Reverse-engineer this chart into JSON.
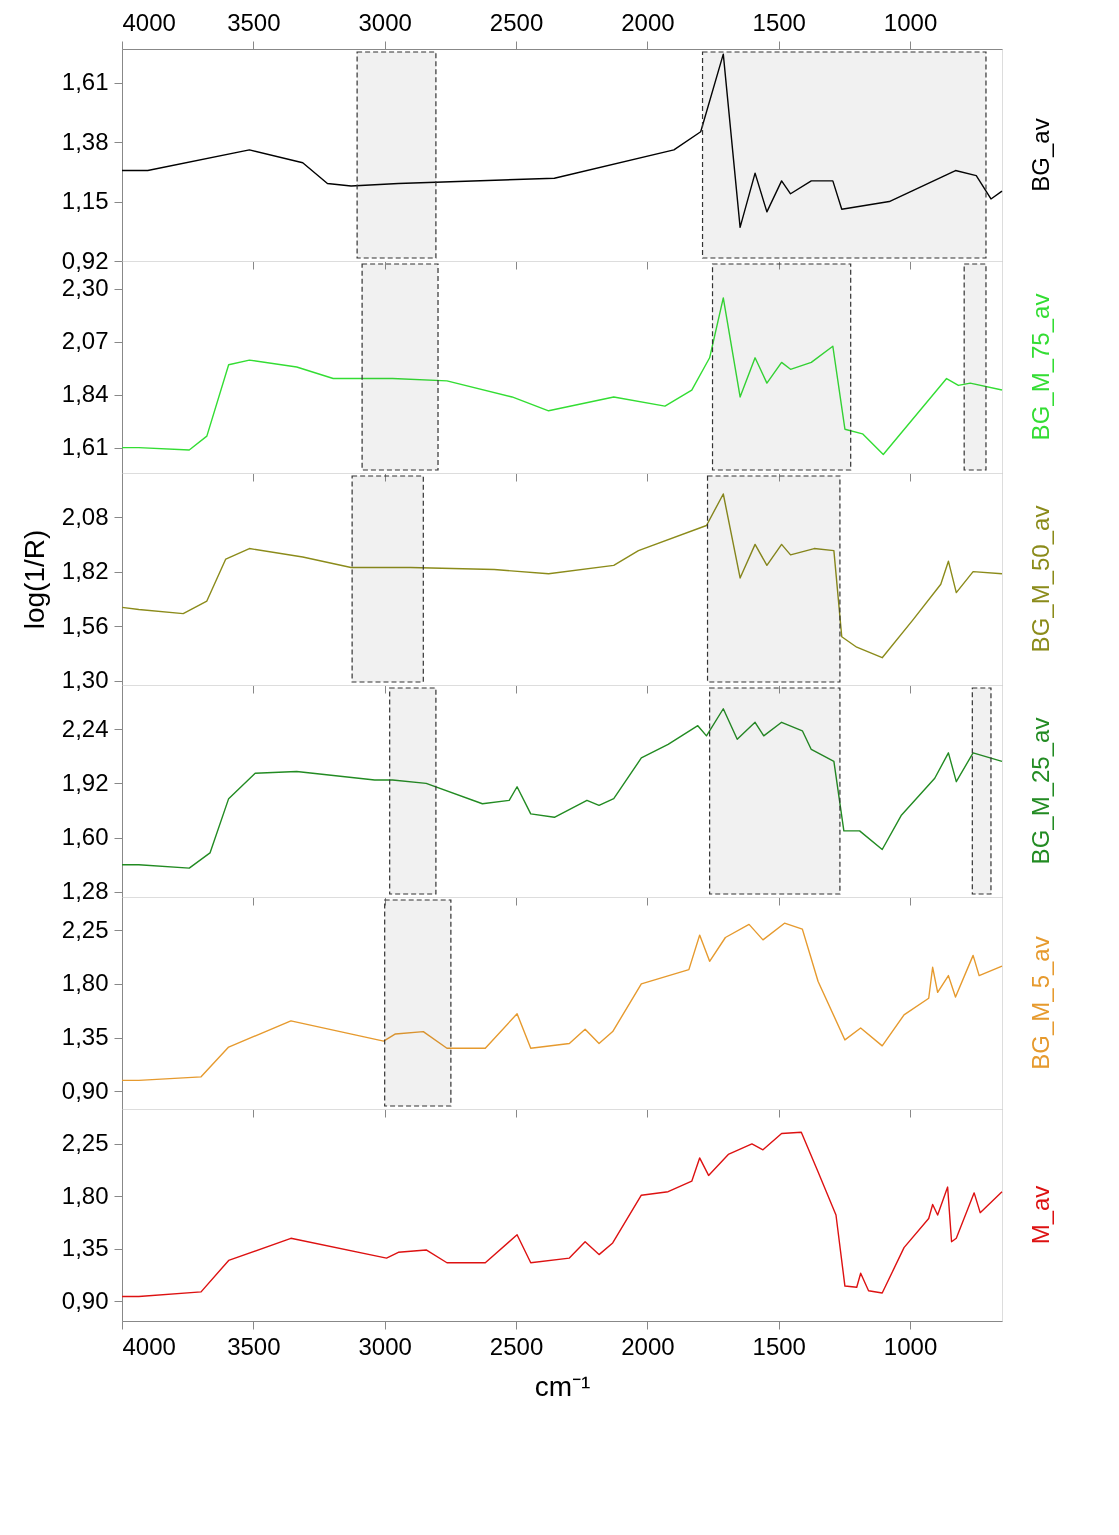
{
  "chart_data": [
    {
      "type": "line",
      "xlim": [
        4000,
        650
      ],
      "x2lim": [
        4000,
        650
      ],
      "x2ticks": [
        4000,
        3500,
        3000,
        2500,
        2000,
        1500,
        1000
      ],
      "xticks": [
        {
          "value": 4000,
          "label": null
        },
        {
          "value": 3500,
          "label": null
        },
        {
          "value": 3000,
          "label": null
        },
        {
          "value": 2500,
          "label": null
        },
        {
          "value": 2000,
          "label": null
        },
        {
          "value": 1500,
          "label": null
        },
        {
          "value": 1000,
          "label": null
        }
      ],
      "ylim": [
        0.92,
        1.74
      ],
      "yticks": [
        {
          "value": 0.92,
          "label": "0,92"
        },
        {
          "value": 1.15,
          "label": "1,15"
        },
        {
          "value": 1.38,
          "label": "1,38"
        },
        {
          "value": 1.61,
          "label": "1,61"
        }
      ],
      "tick_labels": "y",
      "grid": false,
      "bands": [
        {
          "axis": "x",
          "from": 3105,
          "to": 2805,
          "color": "#333333"
        },
        {
          "axis": "x",
          "from": 1790,
          "to": 711,
          "color": "#333333"
        }
      ],
      "series": [
        {
          "name": "BG_av",
          "color": "#000000",
          "x": [
            4000,
            3902,
            3515,
            3312,
            3218,
            3128,
            2948,
            2354,
            1899,
            1797,
            1711,
            1647,
            1590,
            1545,
            1489,
            1455,
            1376,
            1294,
            1260,
            1079,
            827,
            748,
            692,
            650
          ],
          "values": [
            1.27,
            1.27,
            1.35,
            1.3,
            1.22,
            1.21,
            1.22,
            1.24,
            1.35,
            1.42,
            1.72,
            1.05,
            1.26,
            1.11,
            1.23,
            1.18,
            1.23,
            1.23,
            1.12,
            1.15,
            1.27,
            1.25,
            1.16,
            1.19
          ]
        }
      ]
    },
    {
      "type": "line",
      "xlim": [
        4000,
        650
      ],
      "xticks": [
        {
          "value": 4000,
          "label": null
        },
        {
          "value": 3500,
          "label": null
        },
        {
          "value": 3000,
          "label": null
        },
        {
          "value": 2500,
          "label": null
        },
        {
          "value": 2000,
          "label": null
        },
        {
          "value": 1500,
          "label": null
        },
        {
          "value": 1000,
          "label": null
        }
      ],
      "ylim": [
        1.5,
        2.42
      ],
      "yticks": [
        {
          "value": 1.61,
          "label": "1,61"
        },
        {
          "value": 1.84,
          "label": "1,84"
        },
        {
          "value": 2.07,
          "label": "2,07"
        },
        {
          "value": 2.3,
          "label": "2,30"
        }
      ],
      "tick_labels": "y",
      "grid": false,
      "bands": [
        {
          "axis": "x",
          "from": 3086,
          "to": 2797,
          "color": "#333333"
        },
        {
          "axis": "x",
          "from": 1752,
          "to": 1226,
          "color": "#333333"
        },
        {
          "axis": "x",
          "from": 794,
          "to": 711,
          "color": "#333333"
        }
      ],
      "series": [
        {
          "name": "BG_M_75_av",
          "color": "#33dd33",
          "x": [
            4000,
            3936,
            3744,
            3677,
            3594,
            3515,
            3335,
            3196,
            2970,
            2763,
            2515,
            2376,
            2128,
            1933,
            1831,
            1763,
            1711,
            1647,
            1590,
            1545,
            1489,
            1455,
            1376,
            1294,
            1248,
            1181,
            1102,
            861,
            816,
            771,
            650
          ],
          "values": [
            1.61,
            1.61,
            1.6,
            1.66,
            1.97,
            1.99,
            1.96,
            1.91,
            1.91,
            1.9,
            1.83,
            1.77,
            1.83,
            1.79,
            1.86,
            2.0,
            2.26,
            1.83,
            2.0,
            1.89,
            1.98,
            1.95,
            1.98,
            2.05,
            1.69,
            1.67,
            1.58,
            1.91,
            1.88,
            1.89,
            1.86
          ]
        }
      ]
    },
    {
      "type": "line",
      "xlim": [
        4000,
        650
      ],
      "xticks": [
        {
          "value": 4000,
          "label": null
        },
        {
          "value": 3500,
          "label": null
        },
        {
          "value": 3000,
          "label": null
        },
        {
          "value": 2500,
          "label": null
        },
        {
          "value": 2000,
          "label": null
        },
        {
          "value": 1500,
          "label": null
        },
        {
          "value": 1000,
          "label": null
        }
      ],
      "ylim": [
        1.28,
        2.29
      ],
      "yticks": [
        {
          "value": 1.3,
          "label": "1,30"
        },
        {
          "value": 1.56,
          "label": "1,56"
        },
        {
          "value": 1.82,
          "label": "1,82"
        },
        {
          "value": 2.08,
          "label": "2,08"
        }
      ],
      "ylabel": "log(1/R)",
      "tick_labels": "y",
      "grid": false,
      "bands": [
        {
          "axis": "x",
          "from": 3124,
          "to": 2853,
          "color": "#333333"
        },
        {
          "axis": "x",
          "from": 1771,
          "to": 1267,
          "color": "#333333"
        }
      ],
      "series": [
        {
          "name": "BG_M_50_av",
          "color": "#8b8b1a",
          "x": [
            4000,
            3936,
            3767,
            3677,
            3605,
            3515,
            3312,
            3128,
            2902,
            2583,
            2376,
            2128,
            2034,
            1775,
            1711,
            1647,
            1590,
            1545,
            1489,
            1455,
            1365,
            1290,
            1260,
            1203,
            1106,
            989,
            883,
            854,
            824,
            760,
            650
          ],
          "values": [
            1.65,
            1.64,
            1.62,
            1.68,
            1.88,
            1.93,
            1.89,
            1.84,
            1.84,
            1.83,
            1.81,
            1.85,
            1.92,
            2.04,
            2.19,
            1.79,
            1.95,
            1.85,
            1.95,
            1.9,
            1.93,
            1.92,
            1.51,
            1.46,
            1.41,
            1.59,
            1.76,
            1.87,
            1.72,
            1.82,
            1.81
          ]
        }
      ]
    },
    {
      "type": "line",
      "xlim": [
        4000,
        650
      ],
      "xticks": [
        {
          "value": 4000,
          "label": null
        },
        {
          "value": 3500,
          "label": null
        },
        {
          "value": 3000,
          "label": null
        },
        {
          "value": 2500,
          "label": null
        },
        {
          "value": 2000,
          "label": null
        },
        {
          "value": 1500,
          "label": null
        },
        {
          "value": 1000,
          "label": null
        }
      ],
      "ylim": [
        1.25,
        2.5
      ],
      "yticks": [
        {
          "value": 1.28,
          "label": "1,28"
        },
        {
          "value": 1.6,
          "label": "1,60"
        },
        {
          "value": 1.92,
          "label": "1,92"
        },
        {
          "value": 2.24,
          "label": "2,24"
        }
      ],
      "tick_labels": "y",
      "grid": false,
      "bands": [
        {
          "axis": "x",
          "from": 2981,
          "to": 2805,
          "color": "#333333"
        },
        {
          "axis": "x",
          "from": 1763,
          "to": 1267,
          "color": "#333333"
        },
        {
          "axis": "x",
          "from": 763,
          "to": 692,
          "color": "#333333"
        }
      ],
      "series": [
        {
          "name": "BG_M_25_av",
          "color": "#228b22",
          "x": [
            4000,
            3936,
            3744,
            3665,
            3594,
            3493,
            3335,
            3038,
            2970,
            2842,
            2628,
            2526,
            2496,
            2444,
            2354,
            2230,
            2184,
            2128,
            2023,
            1921,
            1808,
            1775,
            1711,
            1658,
            1590,
            1557,
            1489,
            1410,
            1376,
            1290,
            1252,
            1192,
            1106,
            1034,
            906,
            854,
            824,
            760,
            650
          ],
          "values": [
            1.44,
            1.44,
            1.42,
            1.51,
            1.83,
            1.98,
            1.99,
            1.94,
            1.94,
            1.92,
            1.8,
            1.82,
            1.9,
            1.74,
            1.72,
            1.82,
            1.79,
            1.83,
            2.07,
            2.15,
            2.26,
            2.2,
            2.36,
            2.18,
            2.28,
            2.2,
            2.28,
            2.23,
            2.12,
            2.05,
            1.64,
            1.64,
            1.53,
            1.73,
            1.95,
            2.1,
            1.93,
            2.1,
            2.05
          ]
        }
      ]
    },
    {
      "type": "line",
      "xlim": [
        4000,
        650
      ],
      "xticks": [
        {
          "value": 4000,
          "label": null
        },
        {
          "value": 3500,
          "label": null
        },
        {
          "value": 3000,
          "label": null
        },
        {
          "value": 2500,
          "label": null
        },
        {
          "value": 2000,
          "label": null
        },
        {
          "value": 1500,
          "label": null
        },
        {
          "value": 1000,
          "label": null
        }
      ],
      "ylim": [
        0.75,
        2.53
      ],
      "yticks": [
        {
          "value": 0.9,
          "label": "0,90"
        },
        {
          "value": 1.35,
          "label": "1,35"
        },
        {
          "value": 1.8,
          "label": "1,80"
        },
        {
          "value": 2.25,
          "label": "2,25"
        }
      ],
      "tick_labels": "y",
      "grid": false,
      "bands": [
        {
          "axis": "x",
          "from": 3000,
          "to": 2748,
          "color": "#333333"
        }
      ],
      "series": [
        {
          "name": "BG_M_5_av",
          "color": "#e69a2e",
          "x": [
            4000,
            3936,
            3699,
            3594,
            3357,
            3004,
            2959,
            2853,
            2763,
            2617,
            2496,
            2444,
            2297,
            2237,
            2184,
            2132,
            2023,
            1842,
            1801,
            1763,
            1703,
            1613,
            1560,
            1478,
            1410,
            1350,
            1248,
            1188,
            1106,
            1023,
            929,
            914,
            895,
            854,
            827,
            760,
            737,
            650
          ],
          "values": [
            0.99,
            0.99,
            1.02,
            1.27,
            1.49,
            1.32,
            1.38,
            1.4,
            1.26,
            1.26,
            1.55,
            1.26,
            1.3,
            1.42,
            1.3,
            1.4,
            1.8,
            1.92,
            2.21,
            1.99,
            2.19,
            2.3,
            2.17,
            2.31,
            2.26,
            1.82,
            1.33,
            1.43,
            1.28,
            1.54,
            1.68,
            1.94,
            1.73,
            1.87,
            1.69,
            2.04,
            1.87,
            1.95
          ]
        }
      ]
    },
    {
      "type": "line",
      "xlim": [
        4000,
        650
      ],
      "xticks": [
        4000,
        3500,
        3000,
        2500,
        2000,
        1500,
        1000
      ],
      "ylim": [
        0.73,
        2.55
      ],
      "yticks": [
        {
          "value": 0.9,
          "label": "0,90"
        },
        {
          "value": 1.35,
          "label": "1,35"
        },
        {
          "value": 1.8,
          "label": "1,80"
        },
        {
          "value": 2.25,
          "label": "2,25"
        }
      ],
      "xlabel": "cm⁻¹",
      "grid": false,
      "series": [
        {
          "name": "M_av",
          "color": "#dd1111",
          "x": [
            4000,
            3936,
            3699,
            3594,
            3357,
            2993,
            2948,
            2842,
            2763,
            2617,
            2496,
            2444,
            2297,
            2237,
            2184,
            2132,
            2023,
            1921,
            1831,
            1801,
            1767,
            1692,
            1602,
            1560,
            1489,
            1414,
            1350,
            1282,
            1248,
            1203,
            1188,
            1158,
            1106,
            1023,
            929,
            914,
            895,
            857,
            842,
            824,
            756,
            733,
            650
          ],
          "values": [
            0.94,
            0.94,
            0.98,
            1.25,
            1.44,
            1.27,
            1.32,
            1.34,
            1.23,
            1.23,
            1.47,
            1.23,
            1.27,
            1.41,
            1.3,
            1.4,
            1.81,
            1.84,
            1.93,
            2.13,
            1.98,
            2.16,
            2.25,
            2.2,
            2.34,
            2.35,
            2.01,
            1.64,
            1.03,
            1.02,
            1.14,
            0.99,
            0.97,
            1.36,
            1.61,
            1.73,
            1.64,
            1.88,
            1.41,
            1.44,
            1.83,
            1.66,
            1.84
          ]
        }
      ]
    }
  ]
}
